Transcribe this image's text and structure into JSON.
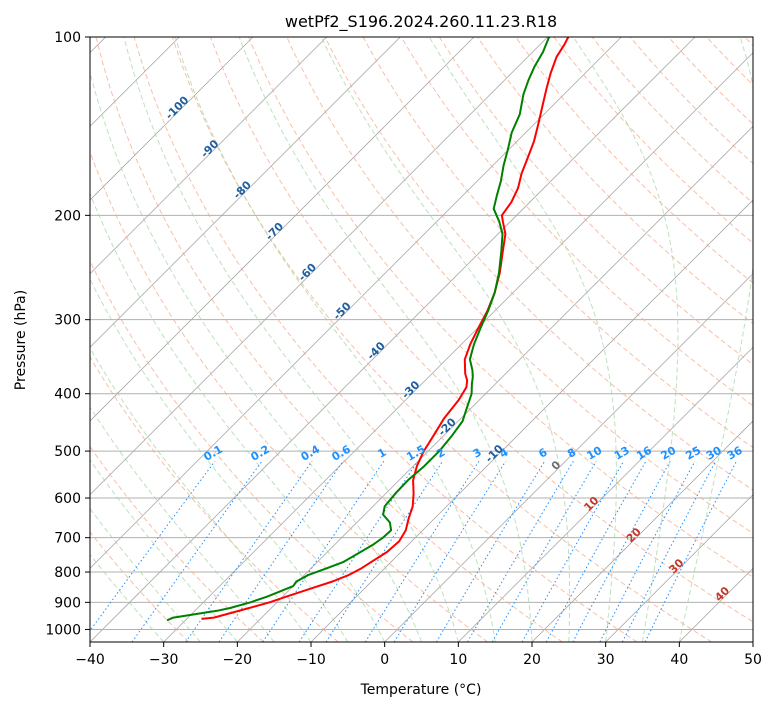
{
  "chart_data": {
    "type": "line",
    "title": "wetPf2_S196.2024.260.11.23.R18",
    "xlabel": "Temperature (°C)",
    "ylabel": "Pressure (hPa)",
    "xlim": [
      -40,
      50
    ],
    "ylim": [
      1050,
      100
    ],
    "y_scale": "log",
    "grid": true,
    "x_ticks": [
      -40,
      -30,
      -20,
      -10,
      0,
      10,
      20,
      30,
      40,
      50
    ],
    "x_tick_labels": [
      "−40",
      "−30",
      "−20",
      "−10",
      "0",
      "10",
      "20",
      "30",
      "40",
      "50"
    ],
    "y_ticks": [
      100,
      200,
      300,
      400,
      500,
      600,
      700,
      800,
      900,
      1000
    ],
    "y_tick_labels": [
      "100",
      "200",
      "300",
      "400",
      "500",
      "600",
      "700",
      "800",
      "900",
      "1000"
    ],
    "colors": {
      "temperature": "#ff0000",
      "dewpoint": "#008000",
      "isotherms": "#808080",
      "dry_adiabats": "#f4a582",
      "moist_adiabats": "#9fd49f",
      "mixing_ratio": "#1e90ff",
      "axes": "#000000"
    },
    "series": [
      {
        "style": "temperature",
        "points": [
          {
            "p": 960,
            "t": -28
          },
          {
            "p": 955,
            "t": -26.5
          },
          {
            "p": 940,
            "t": -25
          },
          {
            "p": 920,
            "t": -23
          },
          {
            "p": 900,
            "t": -21
          },
          {
            "p": 880,
            "t": -19.5
          },
          {
            "p": 850,
            "t": -17
          },
          {
            "p": 830,
            "t": -15.3
          },
          {
            "p": 810,
            "t": -14
          },
          {
            "p": 790,
            "t": -13.2
          },
          {
            "p": 770,
            "t": -12.7
          },
          {
            "p": 740,
            "t": -11.9
          },
          {
            "p": 710,
            "t": -11.7
          },
          {
            "p": 680,
            "t": -12.3
          },
          {
            "p": 650,
            "t": -13.5
          },
          {
            "p": 620,
            "t": -14.6
          },
          {
            "p": 590,
            "t": -16.2
          },
          {
            "p": 560,
            "t": -18.1
          },
          {
            "p": 530,
            "t": -19.5
          },
          {
            "p": 500,
            "t": -20.6
          },
          {
            "p": 470,
            "t": -21.4
          },
          {
            "p": 440,
            "t": -22.3
          },
          {
            "p": 410,
            "t": -22.8
          },
          {
            "p": 390,
            "t": -23.5
          },
          {
            "p": 380,
            "t": -24.3
          },
          {
            "p": 370,
            "t": -25.5
          },
          {
            "p": 350,
            "t": -27.5
          },
          {
            "p": 330,
            "t": -28.8
          },
          {
            "p": 310,
            "t": -29.9
          },
          {
            "p": 290,
            "t": -31
          },
          {
            "p": 270,
            "t": -32.5
          },
          {
            "p": 250,
            "t": -34.5
          },
          {
            "p": 230,
            "t": -37
          },
          {
            "p": 215,
            "t": -39
          },
          {
            "p": 205,
            "t": -41
          },
          {
            "p": 200,
            "t": -42
          },
          {
            "p": 190,
            "t": -42.5
          },
          {
            "p": 180,
            "t": -43.5
          },
          {
            "p": 170,
            "t": -45
          },
          {
            "p": 160,
            "t": -46.3
          },
          {
            "p": 150,
            "t": -47.7
          },
          {
            "p": 140,
            "t": -49.5
          },
          {
            "p": 130,
            "t": -51.5
          },
          {
            "p": 122,
            "t": -53.2
          },
          {
            "p": 115,
            "t": -54.7
          },
          {
            "p": 108,
            "t": -56.1
          },
          {
            "p": 103,
            "t": -56.7
          },
          {
            "p": 100,
            "t": -57.2
          }
        ]
      },
      {
        "style": "dewpoint",
        "points": [
          {
            "p": 965,
            "t": -32.5
          },
          {
            "p": 955,
            "t": -32
          },
          {
            "p": 945,
            "t": -30
          },
          {
            "p": 930,
            "t": -27
          },
          {
            "p": 920,
            "t": -25.6
          },
          {
            "p": 900,
            "t": -23.6
          },
          {
            "p": 880,
            "t": -22.1
          },
          {
            "p": 860,
            "t": -20.9
          },
          {
            "p": 845,
            "t": -20
          },
          {
            "p": 830,
            "t": -20.2
          },
          {
            "p": 810,
            "t": -19.5
          },
          {
            "p": 790,
            "t": -18
          },
          {
            "p": 770,
            "t": -16.5
          },
          {
            "p": 750,
            "t": -15.8
          },
          {
            "p": 720,
            "t": -14.8
          },
          {
            "p": 700,
            "t": -14.4
          },
          {
            "p": 680,
            "t": -14.3
          },
          {
            "p": 660,
            "t": -15.5
          },
          {
            "p": 640,
            "t": -17.5
          },
          {
            "p": 620,
            "t": -18.4
          },
          {
            "p": 590,
            "t": -18.7
          },
          {
            "p": 560,
            "t": -18.8
          },
          {
            "p": 530,
            "t": -18.5
          },
          {
            "p": 500,
            "t": -18.5
          },
          {
            "p": 470,
            "t": -18.9
          },
          {
            "p": 445,
            "t": -19.4
          },
          {
            "p": 425,
            "t": -20.5
          },
          {
            "p": 400,
            "t": -21.9
          },
          {
            "p": 385,
            "t": -23.2
          },
          {
            "p": 375,
            "t": -24
          },
          {
            "p": 365,
            "t": -25
          },
          {
            "p": 350,
            "t": -26.8
          },
          {
            "p": 330,
            "t": -28.3
          },
          {
            "p": 310,
            "t": -29.6
          },
          {
            "p": 290,
            "t": -30.9
          },
          {
            "p": 270,
            "t": -32.5
          },
          {
            "p": 250,
            "t": -34.6
          },
          {
            "p": 230,
            "t": -37.2
          },
          {
            "p": 215,
            "t": -39.4
          },
          {
            "p": 205,
            "t": -41.5
          },
          {
            "p": 195,
            "t": -44
          },
          {
            "p": 185,
            "t": -45.4
          },
          {
            "p": 175,
            "t": -46.8
          },
          {
            "p": 165,
            "t": -48.5
          },
          {
            "p": 155,
            "t": -50.1
          },
          {
            "p": 145,
            "t": -51.9
          },
          {
            "p": 135,
            "t": -53.3
          },
          {
            "p": 125,
            "t": -55.5
          },
          {
            "p": 118,
            "t": -56.8
          },
          {
            "p": 112,
            "t": -57.8
          },
          {
            "p": 106,
            "t": -58.6
          },
          {
            "p": 100,
            "t": -59.8
          }
        ]
      }
    ],
    "isotherm_labels": {
      "values": [
        -100,
        -90,
        -80,
        -70,
        -60,
        -50,
        -40,
        -30,
        -20,
        -10,
        0,
        10,
        20,
        30,
        40
      ],
      "texts": [
        "-100",
        "-90",
        "-80",
        "-70",
        "-60",
        "-50",
        "-40",
        "-30",
        "-20",
        "-10",
        "0",
        "10",
        "20",
        "30",
        "40"
      ],
      "pressure": [
        133,
        156,
        183,
        215,
        252,
        293,
        342,
        398,
        460,
        510,
        534,
        620,
        700,
        790,
        880
      ]
    },
    "mixing_ratio_labels": {
      "values": [
        0.1,
        0.2,
        0.4,
        0.6,
        1,
        1.5,
        2,
        3,
        4,
        6,
        8,
        10,
        13,
        16,
        20,
        25,
        30,
        36
      ],
      "texts": [
        "0.1",
        "0.2",
        "0.4",
        "0.6",
        "1",
        "1.5",
        "2",
        "3",
        "4",
        "6",
        "8",
        "10",
        "13",
        "16",
        "20",
        "25",
        "30",
        "36"
      ]
    }
  }
}
